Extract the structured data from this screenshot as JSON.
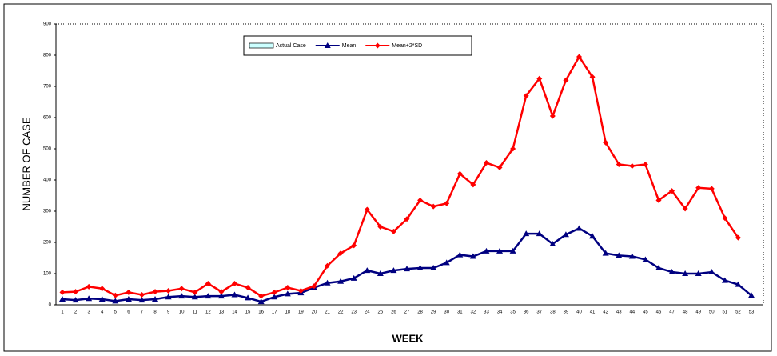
{
  "chart_data": {
    "type": "line",
    "x_label": "WEEK",
    "y_label": "NUMBER OF CASE",
    "categories": [
      "1",
      "2",
      "3",
      "4",
      "5",
      "6",
      "7",
      "8",
      "9",
      "10",
      "11",
      "12",
      "13",
      "14",
      "15",
      "16",
      "17",
      "18",
      "19",
      "20",
      "21",
      "22",
      "23",
      "24",
      "25",
      "26",
      "27",
      "28",
      "29",
      "30",
      "31",
      "32",
      "33",
      "34",
      "35",
      "36",
      "37",
      "38",
      "39",
      "40",
      "41",
      "42",
      "43",
      "44",
      "45",
      "46",
      "47",
      "48",
      "49",
      "50",
      "51",
      "52",
      "53"
    ],
    "series": [
      {
        "name": "Actual Case",
        "color": "#ccffff",
        "values": [
          null,
          null,
          null,
          null,
          null,
          null,
          null,
          null,
          null,
          null,
          null,
          null,
          null,
          null,
          null,
          null,
          null,
          null,
          null,
          null,
          null,
          null,
          null,
          null,
          null,
          null,
          null,
          null,
          null,
          null,
          null,
          null,
          null,
          null,
          null,
          null,
          null,
          null,
          null,
          null,
          null,
          null,
          null,
          null,
          null,
          null,
          null,
          null,
          null,
          null,
          null,
          null,
          null
        ]
      },
      {
        "name": "Mean",
        "color": "#000080",
        "marker": "triangle",
        "values": [
          18,
          15,
          20,
          18,
          12,
          18,
          15,
          18,
          25,
          28,
          25,
          28,
          28,
          32,
          22,
          10,
          25,
          35,
          38,
          55,
          70,
          75,
          85,
          110,
          100,
          110,
          115,
          118,
          118,
          135,
          160,
          155,
          172,
          172,
          172,
          228,
          228,
          195,
          225,
          245,
          220,
          165,
          158,
          155,
          145,
          118,
          105,
          100,
          100,
          105,
          78,
          65,
          30
        ]
      },
      {
        "name": "Mean+2*SD",
        "color": "#ff0000",
        "marker": "diamond",
        "values": [
          40,
          42,
          58,
          52,
          30,
          40,
          32,
          42,
          45,
          52,
          40,
          68,
          42,
          68,
          55,
          28,
          40,
          55,
          45,
          60,
          125,
          165,
          190,
          305,
          250,
          235,
          275,
          335,
          315,
          325,
          420,
          385,
          455,
          440,
          500,
          670,
          725,
          605,
          720,
          795,
          730,
          520,
          450,
          445,
          450,
          335,
          365,
          308,
          375,
          372,
          278,
          215,
          null
        ]
      }
    ],
    "ylim": [
      0,
      900
    ],
    "yticks": [
      0,
      100,
      200,
      300,
      400,
      500,
      600,
      700,
      800,
      900
    ],
    "legend": "top"
  }
}
